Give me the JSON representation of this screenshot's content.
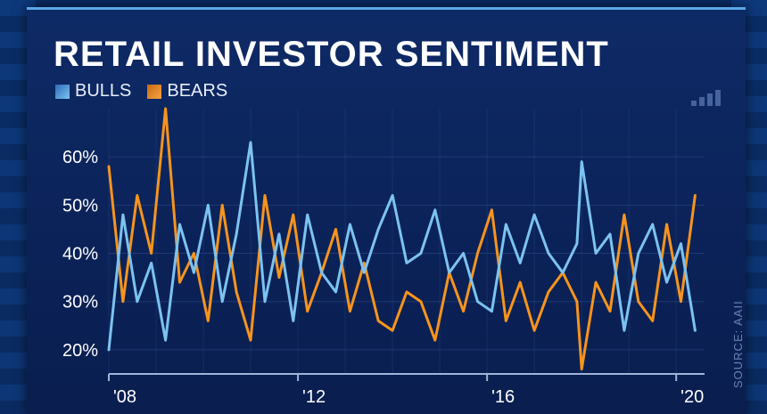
{
  "header": {
    "title": "RETAIL INVESTOR SENTIMENT",
    "legend": [
      {
        "label": "BULLS",
        "color": "#7cc3f0"
      },
      {
        "label": "BEARS",
        "color": "#f7941d"
      }
    ]
  },
  "source": "SOURCE: AAII",
  "colors": {
    "bulls": "#7cc3f0",
    "bears": "#f7941d",
    "background": "#0b2258",
    "grid": "#2a4a8a"
  },
  "chart_data": {
    "type": "line",
    "title": "RETAIL INVESTOR SENTIMENT",
    "xlabel": "",
    "ylabel": "",
    "x_range": [
      2008.0,
      2020.6
    ],
    "ylim": [
      15,
      70
    ],
    "y_ticks": [
      20,
      30,
      40,
      50,
      60
    ],
    "y_tick_labels": [
      "20%",
      "30%",
      "40%",
      "50%",
      "60%"
    ],
    "x_ticks": [
      2008,
      2012,
      2016,
      2020
    ],
    "x_tick_labels": [
      "'08",
      "'12",
      "'16",
      "'20"
    ],
    "grid": true,
    "legend_position": "top-left",
    "series": [
      {
        "name": "BULLS",
        "x": [
          2008.0,
          2008.3,
          2008.6,
          2008.9,
          2009.2,
          2009.5,
          2009.8,
          2010.1,
          2010.4,
          2010.7,
          2011.0,
          2011.3,
          2011.6,
          2011.9,
          2012.2,
          2012.5,
          2012.8,
          2013.1,
          2013.4,
          2013.7,
          2014.0,
          2014.3,
          2014.6,
          2014.9,
          2015.2,
          2015.5,
          2015.8,
          2016.1,
          2016.4,
          2016.7,
          2017.0,
          2017.3,
          2017.6,
          2017.9,
          2018.0,
          2018.3,
          2018.6,
          2018.9,
          2019.2,
          2019.5,
          2019.8,
          2020.1,
          2020.4
        ],
        "values": [
          20,
          48,
          30,
          38,
          22,
          46,
          36,
          50,
          30,
          44,
          63,
          30,
          44,
          26,
          48,
          36,
          32,
          46,
          36,
          45,
          52,
          38,
          40,
          49,
          36,
          40,
          30,
          28,
          46,
          38,
          48,
          40,
          36,
          42,
          59,
          40,
          44,
          24,
          40,
          46,
          34,
          42,
          24
        ]
      },
      {
        "name": "BEARS",
        "x": [
          2008.0,
          2008.3,
          2008.6,
          2008.9,
          2009.2,
          2009.5,
          2009.8,
          2010.1,
          2010.4,
          2010.7,
          2011.0,
          2011.3,
          2011.6,
          2011.9,
          2012.2,
          2012.5,
          2012.8,
          2013.1,
          2013.4,
          2013.7,
          2014.0,
          2014.3,
          2014.6,
          2014.9,
          2015.2,
          2015.5,
          2015.8,
          2016.1,
          2016.4,
          2016.7,
          2017.0,
          2017.3,
          2017.6,
          2017.9,
          2018.0,
          2018.3,
          2018.6,
          2018.9,
          2019.2,
          2019.5,
          2019.8,
          2020.1,
          2020.4
        ],
        "values": [
          58,
          30,
          52,
          40,
          70,
          34,
          40,
          26,
          50,
          32,
          22,
          52,
          35,
          48,
          28,
          36,
          45,
          28,
          38,
          26,
          24,
          32,
          30,
          22,
          36,
          28,
          40,
          49,
          26,
          34,
          24,
          32,
          36,
          30,
          16,
          34,
          28,
          48,
          30,
          26,
          46,
          30,
          52
        ]
      }
    ]
  }
}
